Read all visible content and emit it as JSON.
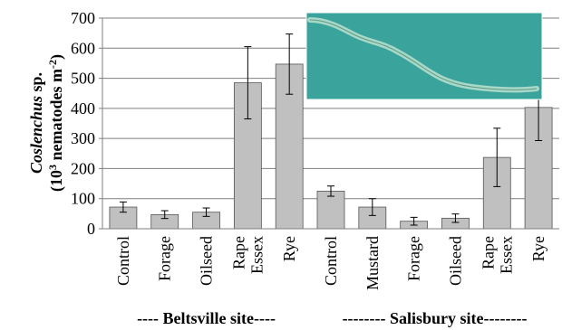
{
  "chart_data": {
    "type": "bar",
    "ylabel": {
      "italic": "Coslenchus",
      "rest": " sp.",
      "line2_start": "(10",
      "sup1": "3",
      "line2_mid": " nematodes m",
      "sup2": "-2",
      "line2_end": ")"
    },
    "categories": [
      "Control",
      "Forage",
      "Oilseed",
      "Rape Essex",
      "Rye",
      "Control",
      "Mustard",
      "Forage",
      "Oilseed",
      "Rape Essex",
      "Rye"
    ],
    "values": [
      72,
      47,
      55,
      485,
      547,
      125,
      72,
      25,
      35,
      237,
      403
    ],
    "errors": [
      17,
      13,
      14,
      120,
      100,
      17,
      28,
      13,
      14,
      97,
      110
    ],
    "color": "#c0c0c0",
    "groups": [
      {
        "label": "---- Beltsville site----",
        "start": 0,
        "end": 4
      },
      {
        "label": "-------- Salisbury site--------",
        "start": 5,
        "end": 10
      }
    ],
    "ylim": [
      0,
      700
    ],
    "yticks": [
      0,
      100,
      200,
      300,
      400,
      500,
      600,
      700
    ],
    "grid": true
  }
}
